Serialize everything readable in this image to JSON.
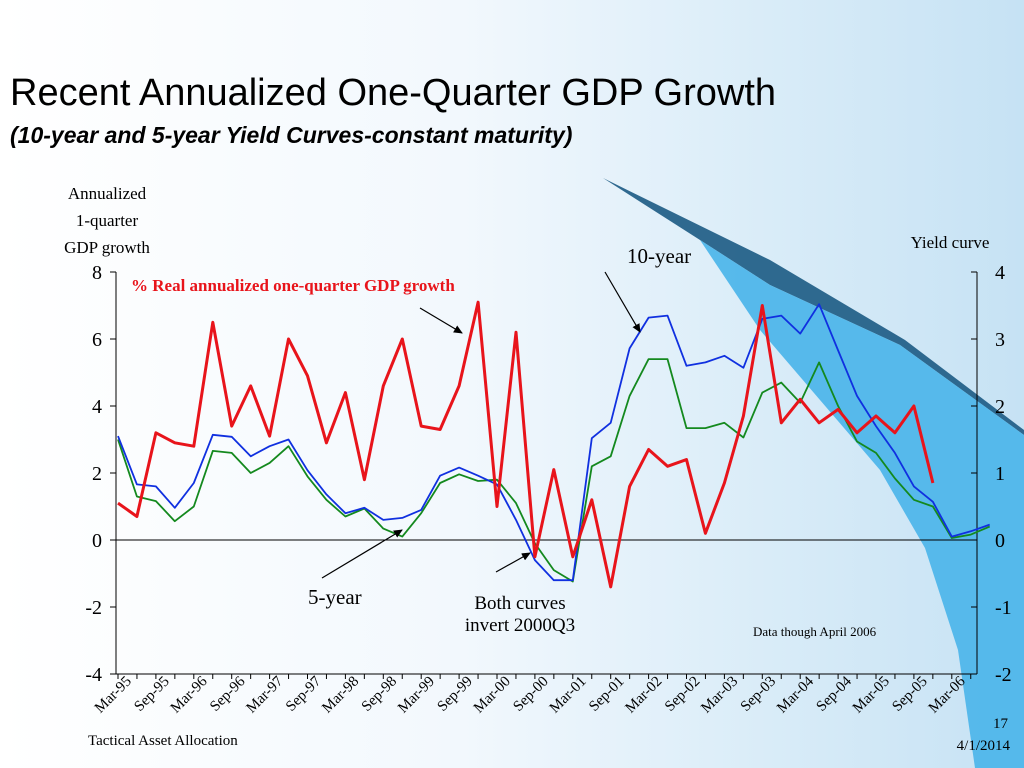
{
  "slide": {
    "title": "Recent Annualized One-Quarter GDP Growth",
    "subtitle": "(10-year and 5-year Yield Curves-constant maturity)",
    "footer_left": "Tactical Asset Allocation",
    "page_number": "17",
    "date": "4/1/2014"
  },
  "colors": {
    "gdp": "#e8141b",
    "ten_year": "#1030e0",
    "five_year": "#14891e",
    "accent_bands": [
      "#1f5d86",
      "#4fb6ea"
    ]
  },
  "chart_data": {
    "type": "line",
    "title": "",
    "left_axis": {
      "label": "Annualized\n1-quarter\nGDP growth",
      "ylim": [
        -4,
        8
      ],
      "ticks": [
        "-4",
        "-2",
        "0",
        "2",
        "4",
        "6",
        "8"
      ]
    },
    "right_axis": {
      "label": "Yield curve",
      "ylim": [
        -2,
        4
      ],
      "ticks": [
        "-2",
        "-1",
        "0",
        "1",
        "2",
        "3",
        "4"
      ]
    },
    "x_labels": [
      "Mar-95",
      "Sep-95",
      "Mar-96",
      "Sep-96",
      "Mar-97",
      "Sep-97",
      "Mar-98",
      "Sep-98",
      "Mar-99",
      "Sep-99",
      "Mar-00",
      "Sep-00",
      "Mar-01",
      "Sep-01",
      "Mar-02",
      "Sep-02",
      "Mar-03",
      "Sep-03",
      "Mar-04",
      "Sep-04",
      "Mar-05",
      "Sep-05",
      "Mar-06"
    ],
    "x_quarters": [
      "1995Q1",
      "1995Q2",
      "1995Q3",
      "1995Q4",
      "1996Q1",
      "1996Q2",
      "1996Q3",
      "1996Q4",
      "1997Q1",
      "1997Q2",
      "1997Q3",
      "1997Q4",
      "1998Q1",
      "1998Q2",
      "1998Q3",
      "1998Q4",
      "1999Q1",
      "1999Q2",
      "1999Q3",
      "1999Q4",
      "2000Q1",
      "2000Q2",
      "2000Q3",
      "2000Q4",
      "2001Q1",
      "2001Q2",
      "2001Q3",
      "2001Q4",
      "2002Q1",
      "2002Q2",
      "2002Q3",
      "2002Q4",
      "2003Q1",
      "2003Q2",
      "2003Q3",
      "2003Q4",
      "2004Q1",
      "2004Q2",
      "2004Q3",
      "2004Q4",
      "2005Q1",
      "2005Q2",
      "2005Q3",
      "2005Q4",
      "2006Q1",
      "2006Q2",
      "2006Q3"
    ],
    "series": [
      {
        "name": "% Real annualized one-quarter GDP growth",
        "axis": "left",
        "color": "#e8141b",
        "values": [
          1.1,
          0.7,
          3.2,
          2.9,
          2.8,
          6.5,
          3.4,
          4.6,
          3.1,
          6.0,
          4.9,
          2.9,
          4.4,
          1.8,
          4.6,
          6.0,
          3.4,
          3.3,
          4.6,
          7.1,
          1.0,
          6.2,
          -0.5,
          2.1,
          -0.5,
          1.2,
          -1.4,
          1.6,
          2.7,
          2.2,
          2.4,
          0.2,
          1.7,
          3.7,
          7.0,
          3.5,
          4.2,
          3.5,
          3.9,
          3.2,
          3.7,
          3.2,
          4.0,
          1.7,
          null,
          null,
          null
        ]
      },
      {
        "name": "10-year",
        "axis": "right",
        "color": "#1030e0",
        "values": [
          1.55,
          0.83,
          0.8,
          0.48,
          0.85,
          1.57,
          1.54,
          1.25,
          1.4,
          1.5,
          1.04,
          0.68,
          0.4,
          0.48,
          0.3,
          0.33,
          0.45,
          0.96,
          1.08,
          0.96,
          0.83,
          0.3,
          -0.3,
          -0.6,
          -0.6,
          1.52,
          1.75,
          2.86,
          3.32,
          3.35,
          2.6,
          2.65,
          2.75,
          2.57,
          3.3,
          3.35,
          3.08,
          3.52,
          2.83,
          2.15,
          1.7,
          1.3,
          0.8,
          0.57,
          0.05,
          0.13,
          0.23
        ]
      },
      {
        "name": "5-year",
        "axis": "right",
        "color": "#14891e",
        "values": [
          1.5,
          0.65,
          0.58,
          0.28,
          0.5,
          1.33,
          1.3,
          1.0,
          1.15,
          1.4,
          0.95,
          0.6,
          0.35,
          0.47,
          0.17,
          0.05,
          0.4,
          0.85,
          0.98,
          0.88,
          0.9,
          0.55,
          -0.05,
          -0.45,
          -0.62,
          1.1,
          1.25,
          2.15,
          2.7,
          2.7,
          1.67,
          1.67,
          1.75,
          1.53,
          2.2,
          2.35,
          2.05,
          2.65,
          2.0,
          1.47,
          1.3,
          0.92,
          0.6,
          0.5,
          0.03,
          0.08,
          0.2
        ]
      }
    ],
    "annotations": [
      {
        "text": "% Real annualized one-quarter GDP growth",
        "series": "gdp"
      },
      {
        "text": "10-year",
        "series": "ten_year"
      },
      {
        "text": "5-year",
        "series": "five_year"
      },
      {
        "text": "Both curves\ninvert 2000Q3"
      },
      {
        "text": "Data though April 2006"
      }
    ],
    "grid": false,
    "legend": "none"
  }
}
